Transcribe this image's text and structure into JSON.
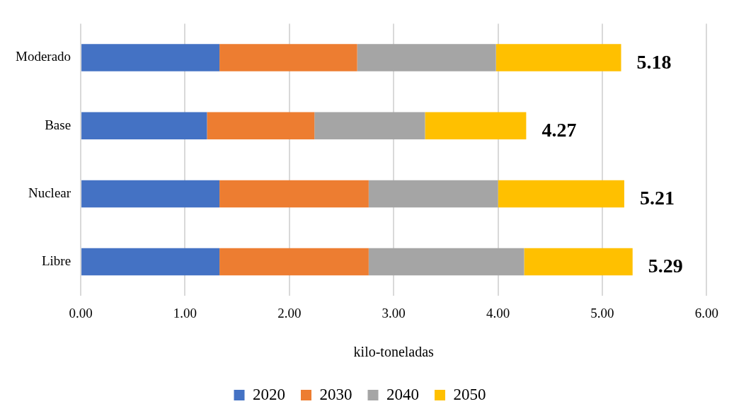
{
  "chart_data": {
    "type": "bar",
    "orientation": "horizontal",
    "stacked": true,
    "xlabel": "kilo-toneladas",
    "categories": [
      "Moderado",
      "Base",
      "Nuclear",
      "Libre"
    ],
    "series": [
      {
        "name": "2020",
        "color": "#4472c4",
        "values": [
          1.33,
          1.21,
          1.33,
          1.33
        ]
      },
      {
        "name": "2030",
        "color": "#ed7d31",
        "values": [
          1.32,
          1.03,
          1.43,
          1.43
        ]
      },
      {
        "name": "2040",
        "color": "#a5a5a5",
        "values": [
          1.33,
          1.06,
          1.24,
          1.49
        ]
      },
      {
        "name": "2050",
        "color": "#ffc000",
        "values": [
          1.2,
          0.97,
          1.21,
          1.04
        ]
      }
    ],
    "totals": [
      "5.18",
      "4.27",
      "5.21",
      "5.29"
    ],
    "xlim": [
      0,
      6
    ],
    "xticks": [
      {
        "value": 0,
        "label": "0.00"
      },
      {
        "value": 1,
        "label": "1.00"
      },
      {
        "value": 2,
        "label": "2.00"
      },
      {
        "value": 3,
        "label": "3.00"
      },
      {
        "value": 4,
        "label": "4.00"
      },
      {
        "value": 5,
        "label": "5.00"
      },
      {
        "value": 6,
        "label": "6.00"
      }
    ],
    "grid": "x",
    "legend": "bottom"
  }
}
